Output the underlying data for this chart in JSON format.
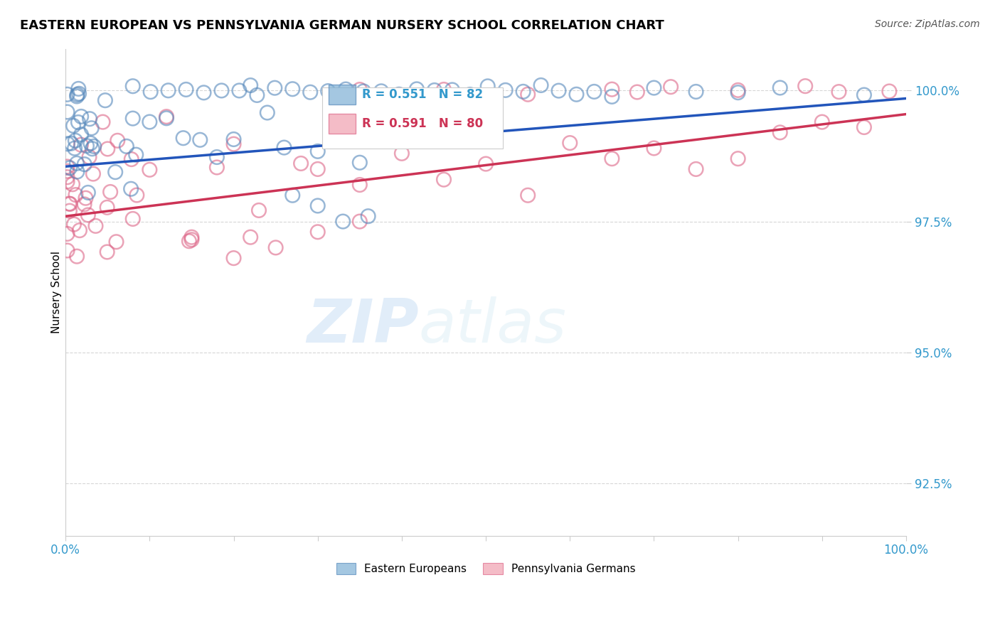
{
  "title": "EASTERN EUROPEAN VS PENNSYLVANIA GERMAN NURSERY SCHOOL CORRELATION CHART",
  "source_text": "Source: ZipAtlas.com",
  "ylabel": "Nursery School",
  "watermark_zip": "ZIP",
  "watermark_atlas": "atlas",
  "xlim": [
    0.0,
    100.0
  ],
  "ylim": [
    91.5,
    100.8
  ],
  "yticks": [
    92.5,
    95.0,
    97.5,
    100.0
  ],
  "ytick_labels": [
    "92.5%",
    "95.0%",
    "97.5%",
    "100.0%"
  ],
  "xtick_labels": [
    "0.0%",
    "",
    "",
    "",
    "",
    "",
    "",
    "",
    "",
    "",
    "100.0%"
  ],
  "blue_color": "#7EB0D5",
  "blue_edge_color": "#5588BB",
  "pink_color": "#F0A0B0",
  "pink_edge_color": "#DD6688",
  "blue_line_color": "#2255BB",
  "pink_line_color": "#CC3355",
  "R_blue": 0.551,
  "N_blue": 82,
  "R_pink": 0.591,
  "N_pink": 80,
  "legend_label_blue": "Eastern Europeans",
  "legend_label_pink": "Pennsylvania Germans",
  "blue_line_x0": 0,
  "blue_line_y0": 98.55,
  "blue_line_x1": 100,
  "blue_line_y1": 99.85,
  "pink_line_x0": 0,
  "pink_line_y0": 97.6,
  "pink_line_x1": 100,
  "pink_line_y1": 99.55
}
